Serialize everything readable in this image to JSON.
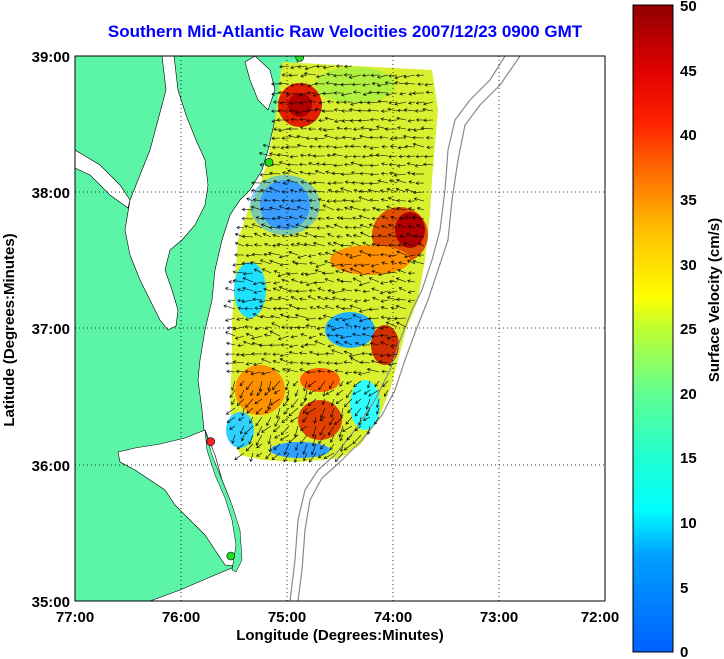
{
  "title": "Southern Mid-Atlantic Raw Velocities 2007/12/23 0900 GMT",
  "x_axis": {
    "label": "Longitude (Degrees:Minutes)",
    "ticks": [
      "77:00",
      "76:00",
      "75:00",
      "74:00",
      "73:00",
      "72:00"
    ]
  },
  "y_axis": {
    "label": "Latitude (Degrees:Minutes)",
    "ticks": [
      "39:00",
      "38:00",
      "37:00",
      "36:00",
      "35:00"
    ]
  },
  "colorbar": {
    "label": "Surface Velocity (cm/s)",
    "ticks": [
      "50",
      "45",
      "40",
      "35",
      "30",
      "25",
      "20",
      "15",
      "10",
      "5",
      "0"
    ],
    "min": 0,
    "max": 50
  },
  "colors": {
    "land": "#5cf5a8",
    "title": "#0000ff",
    "station_green": "#22dd22",
    "station_red": "#ff2020"
  },
  "map": {
    "lon_range": [
      -77,
      -72
    ],
    "lat_range": [
      35,
      39
    ],
    "grid": true,
    "stations": [
      {
        "lon": -74.88,
        "lat": 38.99,
        "status": "green"
      },
      {
        "lon": -75.17,
        "lat": 38.22,
        "status": "green"
      },
      {
        "lon": -75.72,
        "lat": 36.17,
        "status": "red"
      },
      {
        "lon": -75.53,
        "lat": 35.33,
        "status": "green"
      }
    ]
  }
}
